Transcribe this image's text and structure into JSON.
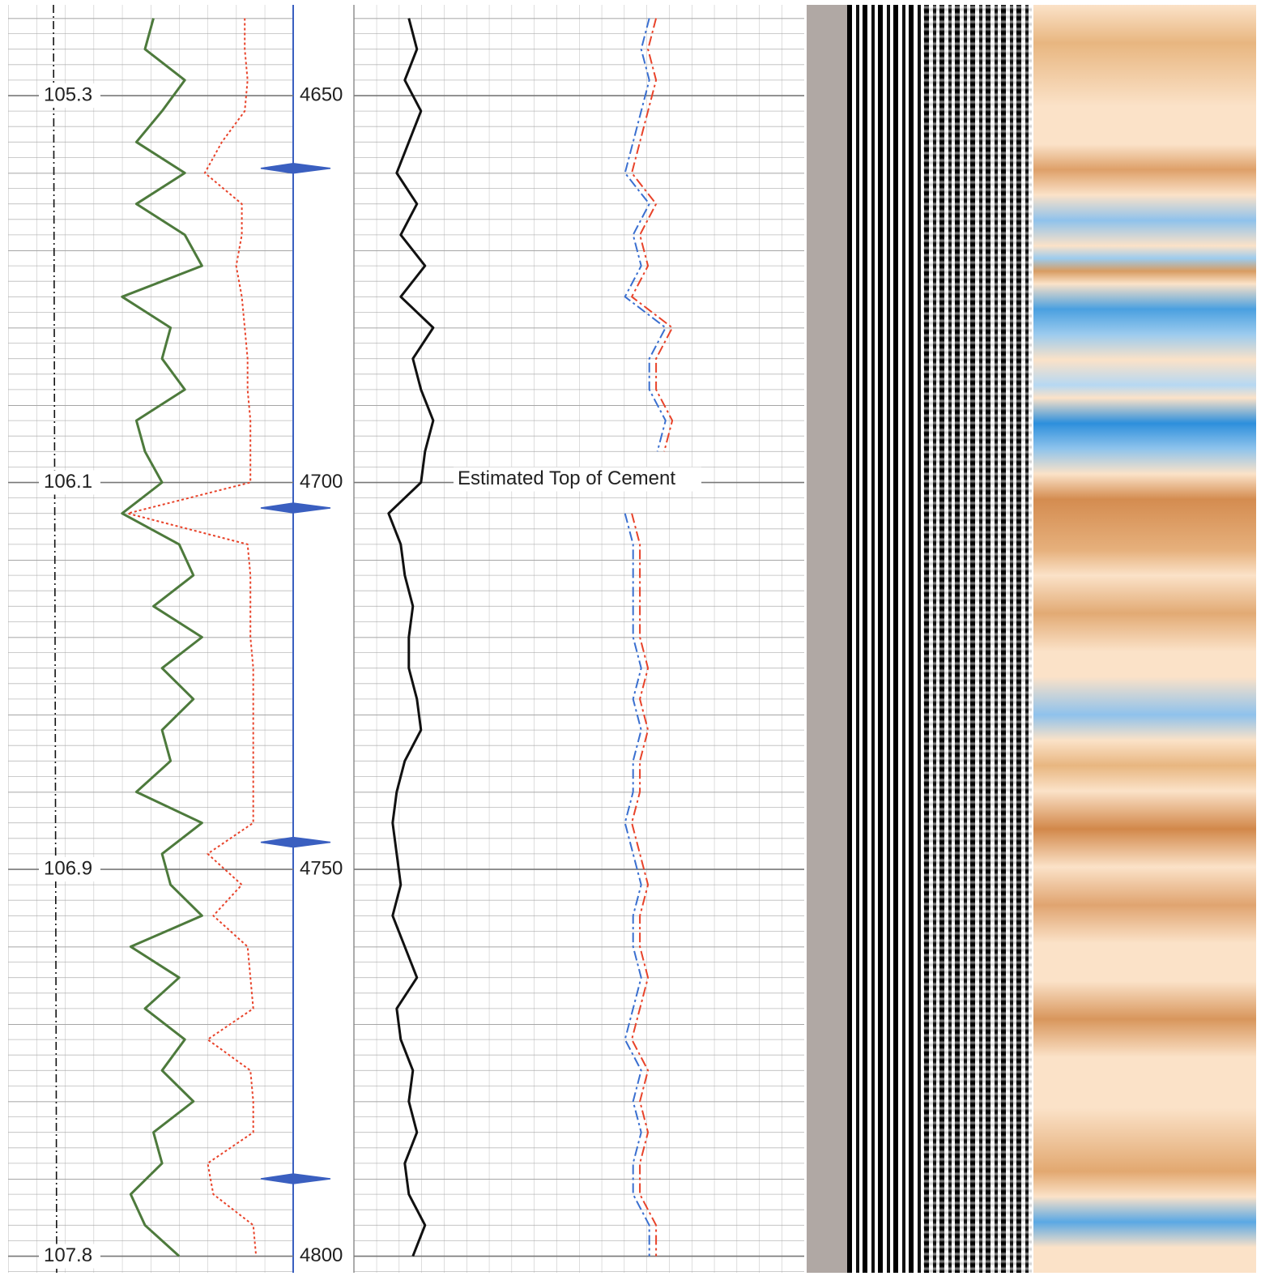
{
  "chart_data": {
    "type": "well_log",
    "ylim": [
      4638,
      4802
    ],
    "yticks": [
      4650,
      4700,
      4750,
      4800
    ],
    "left_axis_labels": [
      105.3,
      106.1,
      106.9,
      107.8
    ],
    "annotation": "Estimated Top of Cement",
    "depths": [
      4640,
      4644,
      4648,
      4652,
      4656,
      4660,
      4664,
      4668,
      4672,
      4676,
      4680,
      4684,
      4688,
      4692,
      4696,
      4700,
      4704,
      4708,
      4712,
      4716,
      4720,
      4724,
      4728,
      4732,
      4736,
      4740,
      4744,
      4748,
      4752,
      4756,
      4760,
      4764,
      4768,
      4772,
      4776,
      4780,
      4784,
      4788,
      4792,
      4796,
      4800
    ],
    "collars": {
      "color": "#3a5fc0",
      "depths": [
        4659.4,
        4703.3,
        4746.5,
        4790
      ]
    },
    "tracks": [
      {
        "xlim": [
          0,
          10
        ],
        "series": [
          {
            "color": "#4d7a3c",
            "style": "solid",
            "values": [
              5.1,
              4.8,
              6.2,
              5.4,
              4.5,
              6.2,
              4.5,
              6.2,
              6.8,
              4.0,
              5.7,
              5.4,
              6.2,
              4.5,
              4.8,
              5.4,
              4.0,
              6.0,
              6.5,
              5.1,
              6.8,
              5.4,
              6.5,
              5.4,
              5.7,
              4.5,
              6.8,
              5.4,
              5.7,
              6.8,
              4.3,
              6.0,
              4.8,
              6.2,
              5.4,
              6.5,
              5.1,
              5.4,
              4.3,
              4.8,
              6.0
            ]
          },
          {
            "color": "#e8432a",
            "style": "dotted",
            "values": [
              8.3,
              8.3,
              8.4,
              8.3,
              7.5,
              6.9,
              8.2,
              8.2,
              8.0,
              8.2,
              8.3,
              8.4,
              8.4,
              8.5,
              8.5,
              8.5,
              4.2,
              8.4,
              8.5,
              8.5,
              8.5,
              8.6,
              8.6,
              8.6,
              8.6,
              8.6,
              8.6,
              7.0,
              8.2,
              7.2,
              8.4,
              8.5,
              8.6,
              7.0,
              8.5,
              8.6,
              8.6,
              7.0,
              7.2,
              8.6,
              8.7
            ]
          }
        ]
      },
      {
        "xlim": [
          0,
          10
        ],
        "series": [
          {
            "color": "#111111",
            "style": "solid",
            "values": [
              1.22,
              1.4,
              1.13,
              1.49,
              1.22,
              0.95,
              1.4,
              1.04,
              1.58,
              1.04,
              1.76,
              1.31,
              1.49,
              1.76,
              1.58,
              1.49,
              0.77,
              1.04,
              1.13,
              1.31,
              1.22,
              1.22,
              1.4,
              1.49,
              1.13,
              0.95,
              0.86,
              0.95,
              1.04,
              0.86,
              1.13,
              1.4,
              0.95,
              1.04,
              1.31,
              1.22,
              1.4,
              1.13,
              1.22,
              1.58,
              1.31
            ]
          },
          {
            "color": "#e8432a",
            "style": "dashdot",
            "values": [
              6.71,
              6.53,
              6.71,
              6.53,
              6.35,
              6.17,
              6.71,
              6.35,
              6.53,
              6.17,
              7.07,
              6.71,
              6.71,
              7.07,
              6.89,
              null,
              6.17,
              6.35,
              6.35,
              6.35,
              6.35,
              6.53,
              6.35,
              6.53,
              6.35,
              6.35,
              6.17,
              6.35,
              6.53,
              6.35,
              6.35,
              6.53,
              6.35,
              6.17,
              6.53,
              6.35,
              6.53,
              6.35,
              6.35,
              6.71,
              6.71
            ]
          },
          {
            "color": "#3a6fd0",
            "style": "dashdot",
            "values": [
              6.56,
              6.38,
              6.56,
              6.38,
              6.2,
              6.02,
              6.56,
              6.2,
              6.38,
              6.02,
              6.92,
              6.56,
              6.56,
              6.92,
              6.74,
              null,
              6.02,
              6.2,
              6.2,
              6.2,
              6.2,
              6.38,
              6.2,
              6.38,
              6.2,
              6.2,
              6.02,
              6.2,
              6.38,
              6.2,
              6.2,
              6.38,
              6.2,
              6.02,
              6.38,
              6.2,
              6.38,
              6.2,
              6.2,
              6.56,
              6.56
            ]
          }
        ]
      }
    ]
  }
}
